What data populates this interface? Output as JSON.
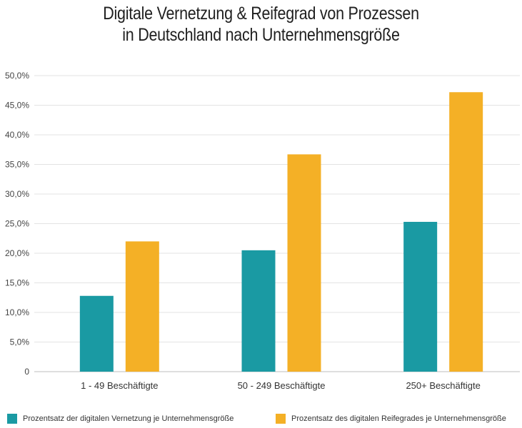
{
  "chart_data": {
    "type": "bar",
    "title": [
      "Digitale Vernetzung & Reifegrad von Prozessen",
      "in Deutschland nach Unternehmensgröße"
    ],
    "categories": [
      "1 - 49 Beschäftigte",
      "50 - 249 Beschäftigte",
      "250+ Beschäftigte"
    ],
    "series": [
      {
        "name": "Prozentsatz der digitalen Vernetzung je Unternehmensgröße",
        "color": "#1a9aa3",
        "values": [
          12.8,
          20.5,
          25.3
        ]
      },
      {
        "name": "Prozentsatz des digitalen Reifegrades je Unternehmensgröße",
        "color": "#f4b026",
        "values": [
          22.0,
          36.7,
          47.2
        ]
      }
    ],
    "ylim": [
      0,
      50
    ],
    "yticks": [
      "0",
      "5,0%",
      "10,0%",
      "15,0%",
      "20,0%",
      "25,0%",
      "30,0%",
      "35,0%",
      "40,0%",
      "45,0%",
      "50,0%"
    ],
    "grid": true,
    "legend": "bottom"
  }
}
